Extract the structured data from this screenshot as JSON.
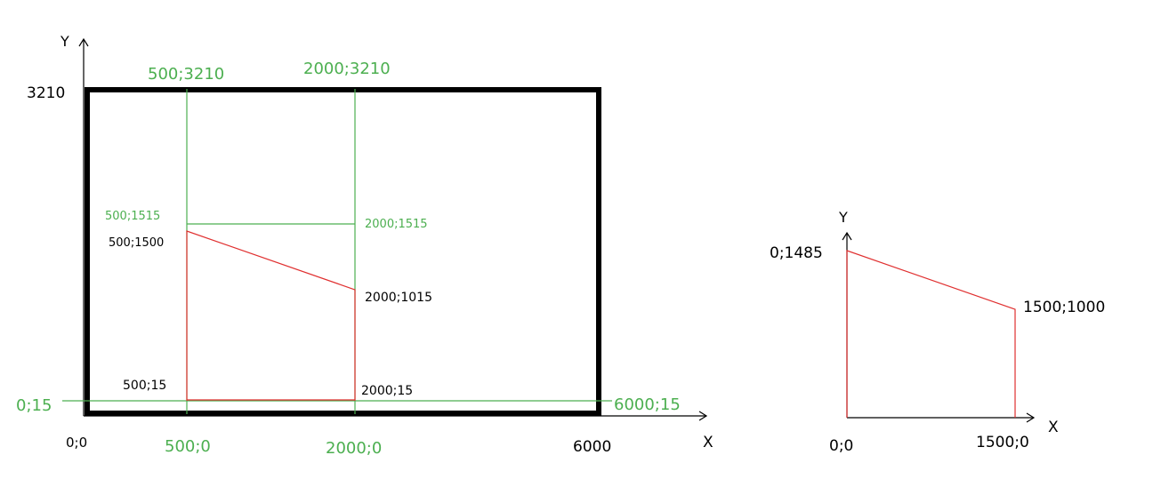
{
  "colors": {
    "frame": "#000000",
    "green_lines": "#4caf50",
    "red_shape": "#e03030",
    "axes": "#000000"
  },
  "left_diagram": {
    "axis_x_label": "X",
    "axis_y_label": "Y",
    "labels": {
      "origin": "0;0",
      "y_top": "3210",
      "x_right": "6000",
      "top_500": "500;3210",
      "top_2000": "2000;3210",
      "mid_500_green": "500;1515",
      "mid_2000_green": "2000;1515",
      "pt_500_1500": "500;1500",
      "pt_2000_1015": "2000;1015",
      "pt_500_15": "500;15",
      "pt_2000_15": "2000;15",
      "left_0_15": "0;15",
      "right_6000_15": "6000;15",
      "bottom_500": "500;0",
      "bottom_2000": "2000;0"
    }
  },
  "right_diagram": {
    "axis_x_label": "X",
    "axis_y_label": "Y",
    "labels": {
      "origin": "0;0",
      "top_left": "0;1485",
      "right_top": "1500;1000",
      "right_bottom": "1500;0"
    }
  }
}
